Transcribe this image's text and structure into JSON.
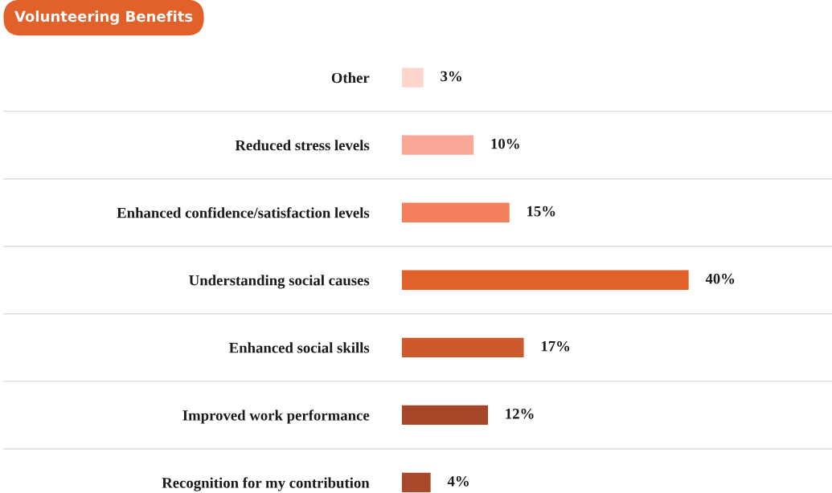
{
  "chart_data": {
    "type": "bar",
    "orientation": "horizontal",
    "title": "Volunteering Benefits",
    "categories": [
      "Other",
      "Reduced stress levels",
      "Enhanced confidence/satisfaction levels",
      "Understanding social causes",
      "Enhanced social skills",
      "Improved work performance",
      "Recognition for my contribution"
    ],
    "values": [
      3,
      10,
      15,
      40,
      17,
      12,
      4
    ],
    "colors": [
      "#fdd5cc",
      "#f9a898",
      "#f47f5c",
      "#e2612a",
      "#cc5a2c",
      "#a6472a",
      "#a8492b"
    ],
    "value_labels": [
      "3%",
      "10%",
      "15%",
      "40%",
      "17%",
      "12%",
      "4%"
    ],
    "xlim": [
      0,
      60
    ],
    "tick_labels": "y",
    "grid": false,
    "legend": false
  }
}
